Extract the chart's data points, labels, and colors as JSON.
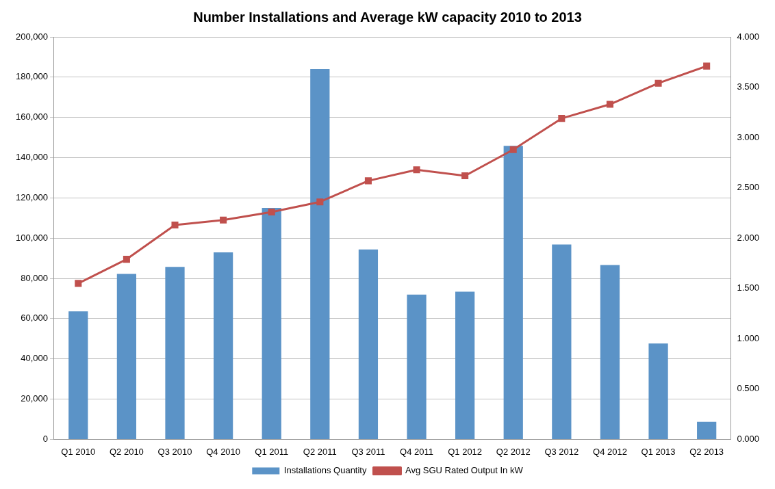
{
  "chart_data": {
    "type": "bar",
    "title": "Number Installations and Average kW capacity 2010 to 2013",
    "categories": [
      "Q1 2010",
      "Q2 2010",
      "Q3 2010",
      "Q4 2010",
      "Q1 2011",
      "Q2 2011",
      "Q3 2011",
      "Q4 2011",
      "Q1 2012",
      "Q2 2012",
      "Q3 2012",
      "Q4 2012",
      "Q1 2013",
      "Q2 2013"
    ],
    "series": [
      {
        "name": "Installations Quantity",
        "color": "#5b93c7",
        "values": [
          63600,
          82200,
          85700,
          92900,
          115000,
          184000,
          94400,
          71900,
          73400,
          145900,
          96800,
          86600,
          47600,
          8700
        ]
      },
      {
        "name": "Avg SGU Rated Output In kW",
        "type": "line",
        "axis": "y2",
        "color": "#c0504d",
        "marker": "square",
        "values": [
          1.55,
          1.79,
          2.13,
          2.18,
          2.26,
          2.36,
          2.57,
          2.68,
          2.62,
          2.88,
          3.19,
          3.33,
          3.54,
          3.71
        ]
      }
    ],
    "ylim": [
      0,
      200000
    ],
    "yticks": [
      {
        "value": 0,
        "label": "0"
      },
      {
        "value": 20000,
        "label": "20,000"
      },
      {
        "value": 40000,
        "label": "40,000"
      },
      {
        "value": 60000,
        "label": "60,000"
      },
      {
        "value": 80000,
        "label": "80,000"
      },
      {
        "value": 100000,
        "label": "100,000"
      },
      {
        "value": 120000,
        "label": "120,000"
      },
      {
        "value": 140000,
        "label": "140,000"
      },
      {
        "value": 160000,
        "label": "160,000"
      },
      {
        "value": 180000,
        "label": "180,000"
      },
      {
        "value": 200000,
        "label": "200,000"
      }
    ],
    "y2lim": [
      0,
      4
    ],
    "y2ticks": [
      {
        "value": 0,
        "label": "0.000"
      },
      {
        "value": 0.5,
        "label": "0.500"
      },
      {
        "value": 1,
        "label": "1.000"
      },
      {
        "value": 1.5,
        "label": "1.500"
      },
      {
        "value": 2,
        "label": "2.000"
      },
      {
        "value": 2.5,
        "label": "2.500"
      },
      {
        "value": 3,
        "label": "3.000"
      },
      {
        "value": 3.5,
        "label": "3.500"
      },
      {
        "value": 4,
        "label": "4.000"
      }
    ],
    "grid": "y",
    "legend": "bottom"
  }
}
